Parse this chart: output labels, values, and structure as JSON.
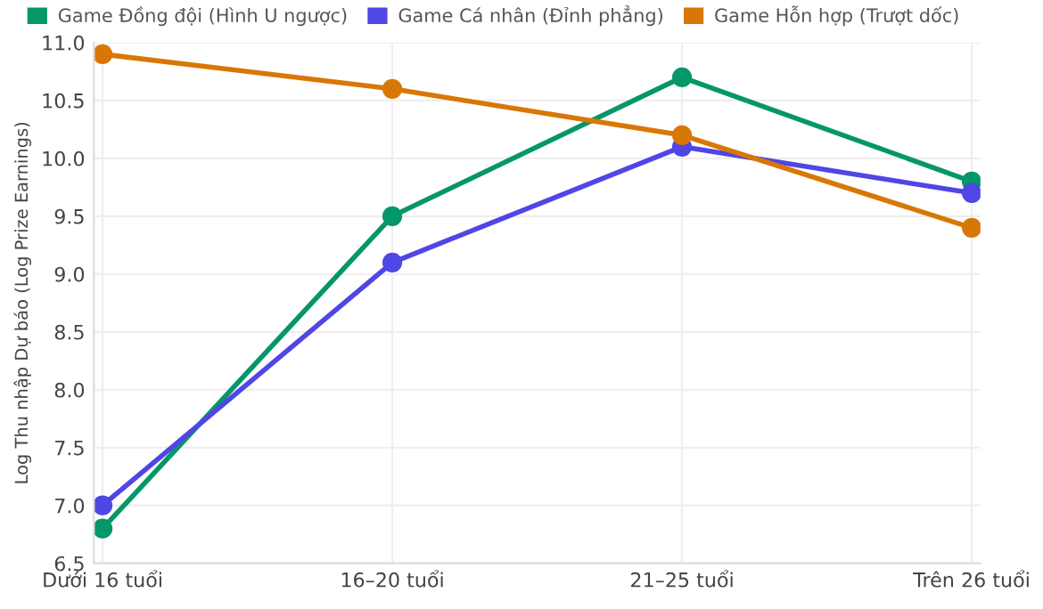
{
  "chart_data": {
    "type": "line",
    "ylabel": "Log Thu nhập Dự báo (Log Prize Earnings)",
    "categories": [
      "Dưới 16 tuổi",
      "16–20 tuổi",
      "21–25 tuổi",
      "Trên 26 tuổi"
    ],
    "series": [
      {
        "name": "Game Đồng đội (Hình U ngược)",
        "color": "#059669",
        "values": [
          6.8,
          9.5,
          10.7,
          9.8
        ]
      },
      {
        "name": "Game Cá nhân (Đỉnh phẳng)",
        "color": "#4f46e5",
        "values": [
          7.0,
          9.1,
          10.1,
          9.7
        ]
      },
      {
        "name": "Game Hỗn hợp (Trượt dốc)",
        "color": "#d97706",
        "values": [
          10.9,
          10.6,
          10.2,
          9.4
        ]
      }
    ],
    "ylim": [
      6.5,
      11.0
    ],
    "yticks": [
      6.5,
      {
        "value": 7,
        "label": "7.0"
      },
      7.5,
      {
        "value": 8,
        "label": "8.0"
      },
      8.5,
      {
        "value": 9,
        "label": "9.0"
      },
      9.5,
      {
        "value": 10,
        "label": "10.0"
      },
      10.5,
      {
        "value": 11,
        "label": "11.0"
      }
    ],
    "grid": true,
    "legend": "top",
    "marker": "circle",
    "line_style": "solid"
  }
}
